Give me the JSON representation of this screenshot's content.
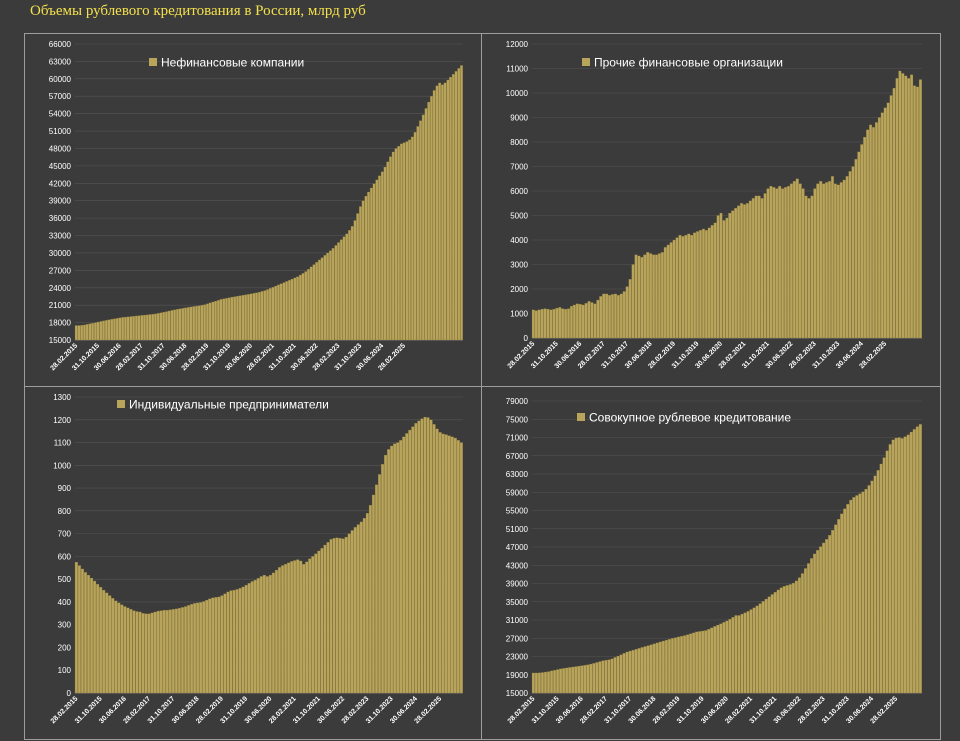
{
  "page": {
    "title": "Объемы рублевого кредитования в России, млрд руб"
  },
  "colors": {
    "background": "#3b3b3b",
    "bar": "#b8a45a",
    "bar_edge": "#7a6b35",
    "grid": "#555555",
    "border": "#9c9c9c",
    "title": "#f4e04d"
  },
  "chart_data": [
    {
      "type": "bar",
      "title": "",
      "series": [
        {
          "name": "Нефинансовые компании",
          "values": [
            17500,
            17500,
            17550,
            17600,
            17700,
            17800,
            17900,
            18000,
            18100,
            18200,
            18300,
            18400,
            18500,
            18580,
            18660,
            18740,
            18820,
            18900,
            18950,
            19000,
            19050,
            19100,
            19150,
            19200,
            19250,
            19300,
            19350,
            19400,
            19450,
            19500,
            19600,
            19700,
            19800,
            19900,
            20000,
            20100,
            20200,
            20300,
            20380,
            20460,
            20540,
            20620,
            20700,
            20780,
            20850,
            20920,
            21000,
            21100,
            21250,
            21400,
            21550,
            21700,
            21850,
            22000,
            22100,
            22200,
            22300,
            22400,
            22480,
            22560,
            22640,
            22720,
            22800,
            22880,
            22960,
            23050,
            23150,
            23250,
            23380,
            23520,
            23700,
            23900,
            24100,
            24300,
            24500,
            24700,
            24900,
            25100,
            25300,
            25500,
            25700,
            25900,
            26200,
            26500,
            26800,
            27200,
            27600,
            28000,
            28400,
            28800,
            29200,
            29600,
            30000,
            30400,
            30800,
            31300,
            31800,
            32300,
            32800,
            33300,
            33900,
            34600,
            35600,
            36800,
            38000,
            39000,
            39800,
            40500,
            41200,
            41900,
            42600,
            43300,
            44000,
            44800,
            45700,
            46600,
            47400,
            48000,
            48400,
            48800,
            49000,
            49200,
            49500,
            50000,
            50800,
            51800,
            52800,
            53800,
            54900,
            56000,
            57000,
            58000,
            58800,
            59300,
            59000,
            59300,
            59800,
            60300,
            60800,
            61300,
            61800,
            62300
          ]
        }
      ],
      "ylim": [
        15000,
        66000
      ],
      "yticks": [
        15000,
        18000,
        21000,
        24000,
        27000,
        30000,
        33000,
        36000,
        39000,
        42000,
        45000,
        48000,
        51000,
        54000,
        57000,
        60000,
        63000,
        66000
      ],
      "xtick_labels": [
        "28.02.2015",
        "31.10.2015",
        "30.06.2016",
        "28.02.2017",
        "31.10.2017",
        "30.06.2018",
        "28.02.2019",
        "31.10.2019",
        "30.06.2020",
        "28.02.2021",
        "31.10.2021",
        "30.06.2022",
        "28.02.2023",
        "31.10.2023",
        "30.06.2024",
        "28.02.2025"
      ],
      "grid": true,
      "legend": "top-left"
    },
    {
      "type": "bar",
      "title": "",
      "series": [
        {
          "name": "Прочие финансовые организации",
          "values": [
            1150,
            1120,
            1150,
            1180,
            1200,
            1180,
            1150,
            1180,
            1220,
            1250,
            1200,
            1180,
            1200,
            1300,
            1350,
            1400,
            1380,
            1350,
            1420,
            1500,
            1450,
            1400,
            1550,
            1700,
            1800,
            1800,
            1750,
            1780,
            1800,
            1750,
            1800,
            1900,
            2100,
            2400,
            3000,
            3400,
            3350,
            3300,
            3400,
            3500,
            3450,
            3400,
            3400,
            3450,
            3500,
            3700,
            3800,
            3900,
            4000,
            4100,
            4200,
            4150,
            4200,
            4250,
            4200,
            4300,
            4350,
            4400,
            4450,
            4400,
            4500,
            4600,
            4700,
            5000,
            5100,
            4800,
            4900,
            5100,
            5200,
            5300,
            5400,
            5500,
            5450,
            5500,
            5600,
            5700,
            5800,
            5800,
            5700,
            5900,
            6100,
            6200,
            6150,
            6100,
            6200,
            6100,
            6150,
            6200,
            6300,
            6400,
            6500,
            6300,
            6100,
            5800,
            5700,
            5800,
            6100,
            6300,
            6400,
            6300,
            6350,
            6400,
            6600,
            6300,
            6250,
            6350,
            6450,
            6600,
            6800,
            7000,
            7300,
            7600,
            7900,
            8200,
            8500,
            8700,
            8600,
            8800,
            9000,
            9200,
            9400,
            9600,
            9900,
            10200,
            10600,
            10900,
            10800,
            10700,
            10600,
            10750,
            10300,
            10250,
            10550
          ]
        }
      ],
      "ylim": [
        0,
        12000
      ],
      "yticks": [
        0,
        1000,
        2000,
        3000,
        4000,
        5000,
        6000,
        7000,
        8000,
        9000,
        10000,
        11000,
        12000
      ],
      "xtick_labels": [
        "28.02.2015",
        "31.10.2015",
        "30.06.2016",
        "28.02.2017",
        "31.10.2017",
        "30.06.2018",
        "28.02.2019",
        "31.10.2019",
        "30.06.2020",
        "28.02.2021",
        "31.10.2021",
        "30.06.2022",
        "28.02.2023",
        "31.10.2023",
        "30.06.2024",
        "28.02.2025"
      ],
      "grid": true,
      "legend": "top-left"
    },
    {
      "type": "bar",
      "title": "",
      "series": [
        {
          "name": "Индивидуальные предприниматели",
          "values": [
            575,
            560,
            545,
            530,
            518,
            505,
            492,
            478,
            465,
            452,
            440,
            428,
            416,
            405,
            396,
            388,
            380,
            374,
            368,
            362,
            358,
            356,
            350,
            348,
            348,
            352,
            356,
            360,
            362,
            364,
            364,
            366,
            368,
            370,
            373,
            376,
            380,
            385,
            390,
            394,
            396,
            398,
            402,
            408,
            414,
            418,
            420,
            422,
            428,
            436,
            444,
            450,
            452,
            455,
            460,
            466,
            474,
            482,
            490,
            496,
            504,
            512,
            518,
            512,
            518,
            528,
            540,
            552,
            560,
            566,
            572,
            578,
            582,
            586,
            580,
            566,
            576,
            590,
            600,
            612,
            624,
            636,
            650,
            662,
            675,
            680,
            682,
            680,
            678,
            685,
            700,
            714,
            728,
            740,
            752,
            768,
            790,
            825,
            870,
            915,
            960,
            1005,
            1045,
            1070,
            1085,
            1095,
            1100,
            1110,
            1125,
            1140,
            1155,
            1170,
            1185,
            1195,
            1205,
            1212,
            1210,
            1200,
            1180,
            1160,
            1145,
            1138,
            1135,
            1130,
            1125,
            1120,
            1110,
            1100
          ]
        }
      ],
      "ylim": [
        0,
        1300
      ],
      "yticks": [
        0,
        100,
        200,
        300,
        400,
        500,
        600,
        700,
        800,
        900,
        1000,
        1100,
        1200,
        1300
      ],
      "xtick_labels": [
        "28.02.2015",
        "31.10.2015",
        "30.06.2016",
        "28.02.2017",
        "31.10.2017",
        "30.06.2018",
        "28.02.2019",
        "31.10.2019",
        "30.06.2020",
        "28.02.2021",
        "31.10.2021",
        "30.06.2022",
        "28.02.2023",
        "31.10.2023",
        "30.06.2024",
        "28.02.2025"
      ],
      "grid": true,
      "legend": "top-left"
    },
    {
      "type": "bar",
      "title": "",
      "series": [
        {
          "name": "Совокупное рублевое кредитование",
          "values": [
            19400,
            19400,
            19450,
            19500,
            19600,
            19700,
            19850,
            20000,
            20150,
            20300,
            20400,
            20500,
            20600,
            20700,
            20800,
            20900,
            21000,
            21100,
            21200,
            21350,
            21500,
            21700,
            21900,
            22100,
            22200,
            22300,
            22500,
            22800,
            23100,
            23400,
            23700,
            24000,
            24200,
            24400,
            24600,
            24800,
            25000,
            25200,
            25400,
            25600,
            25800,
            26000,
            26200,
            26400,
            26600,
            26800,
            27000,
            27150,
            27300,
            27450,
            27600,
            27800,
            28000,
            28200,
            28400,
            28500,
            28600,
            28700,
            29000,
            29300,
            29600,
            29900,
            30200,
            30500,
            30800,
            31200,
            31600,
            32000,
            32000,
            32300,
            32600,
            32900,
            33300,
            33700,
            34100,
            34600,
            35100,
            35600,
            36100,
            36600,
            37100,
            37600,
            38100,
            38400,
            38600,
            38800,
            39100,
            39600,
            40300,
            41200,
            42300,
            43400,
            44500,
            45500,
            46300,
            47100,
            47900,
            48700,
            49600,
            50700,
            51900,
            53100,
            54300,
            55400,
            56400,
            57300,
            57900,
            58300,
            58700,
            59100,
            59700,
            60500,
            61500,
            62600,
            63800,
            65200,
            66600,
            68100,
            69500,
            70500,
            70900,
            71000,
            70800,
            71200,
            71600,
            72200,
            72800,
            73400,
            73900
          ]
        }
      ],
      "ylim": [
        15000,
        79000
      ],
      "yticks": [
        15000,
        19000,
        23000,
        27000,
        31000,
        35000,
        39000,
        43000,
        47000,
        51000,
        55000,
        59000,
        63000,
        67000,
        71000,
        75000,
        79000
      ],
      "xtick_labels": [
        "28.02.2015",
        "31.10.2015",
        "30.06.2016",
        "28.02.2017",
        "31.10.2017",
        "30.06.2018",
        "28.02.2019",
        "31.10.2019",
        "30.06.2020",
        "28.02.2021",
        "31.10.2021",
        "30.06.2022",
        "28.02.2023",
        "31.10.2023",
        "30.06.2024",
        "28.02.2025"
      ],
      "grid": true,
      "legend": "top-left"
    }
  ]
}
